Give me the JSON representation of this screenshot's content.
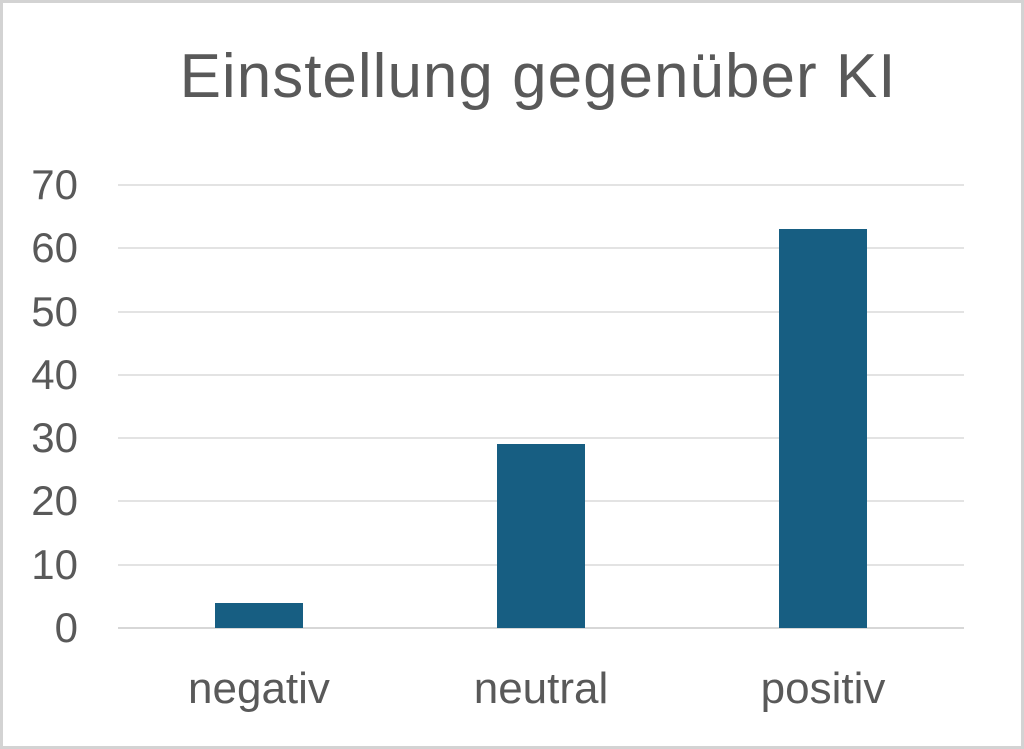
{
  "chart_data": {
    "type": "bar",
    "title": "Einstellung gegenüber KI",
    "categories": [
      "negativ",
      "neutral",
      "positiv"
    ],
    "values": [
      4,
      29,
      63
    ],
    "xlabel": "",
    "ylabel": "",
    "ylim": [
      0,
      70
    ],
    "yticks": [
      0,
      10,
      20,
      30,
      40,
      50,
      60,
      70
    ],
    "grid": true,
    "legend": false,
    "colors": {
      "bar_fill": "#175e82",
      "gridline": "#e3e3e3",
      "zero_line": "#d7d7d7",
      "text": "#595959",
      "frame_border": "#d3d3d3",
      "background": "#ffffff"
    }
  }
}
